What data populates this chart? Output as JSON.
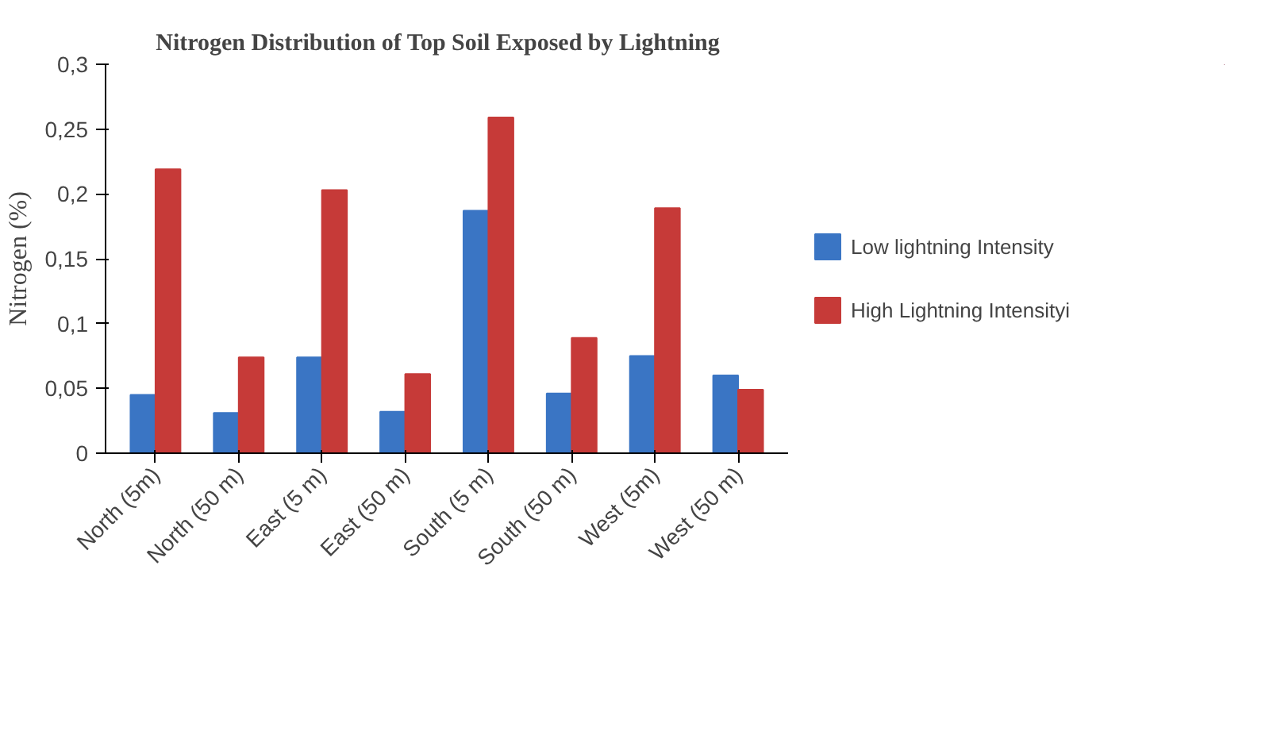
{
  "chart_data": {
    "type": "bar",
    "title": "Nitrogen  Distribution of Top Soil  Exposed by  Lightning",
    "ylabel": "Nitrogen (%)",
    "categories": [
      "North (5m)",
      "North (50 m)",
      "East (5 m)",
      "East (50 m)",
      "South (5 m)",
      "South (50 m)",
      "West (5m)",
      "West (50 m)"
    ],
    "series": [
      {
        "name": "Low lightning Intensity",
        "color": "#3a75c4",
        "values": [
          0.045,
          0.031,
          0.074,
          0.032,
          0.187,
          0.046,
          0.075,
          0.06
        ]
      },
      {
        "name": "High Lightning Intensityi",
        "color": "#c63a38",
        "values": [
          0.219,
          0.074,
          0.203,
          0.061,
          0.259,
          0.089,
          0.189,
          0.049
        ]
      }
    ],
    "ylim": [
      0,
      0.3
    ],
    "yticks": [
      0,
      {
        "value": 0.05,
        "label": "0,05"
      },
      {
        "value": 0.1,
        "label": "0,1"
      },
      {
        "value": 0.15,
        "label": "0,15"
      },
      {
        "value": 0.2,
        "label": "0,2"
      },
      {
        "value": 0.25,
        "label": "0,25"
      },
      {
        "value": 0.3,
        "label": "0,3"
      }
    ],
    "grid": false,
    "legend": "right"
  }
}
